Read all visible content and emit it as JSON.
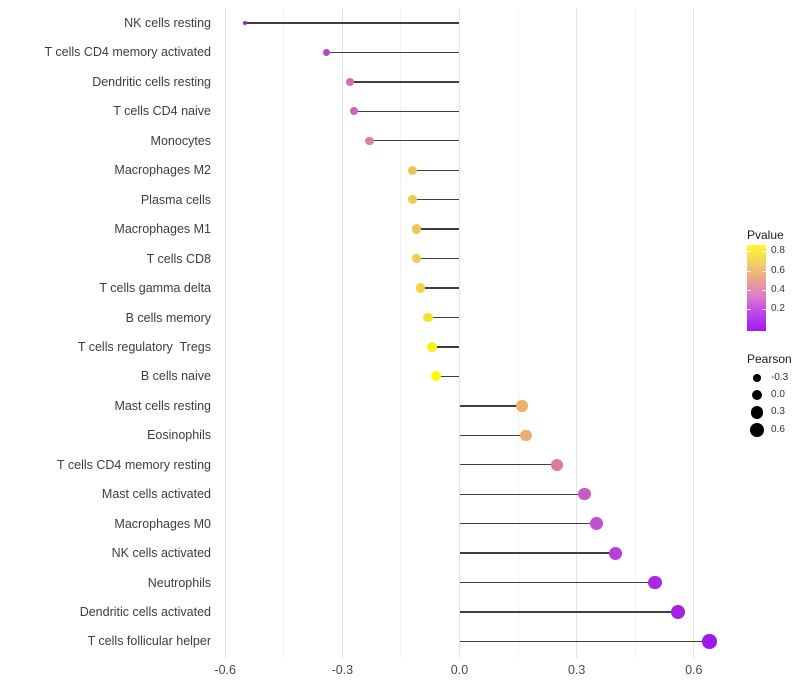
{
  "chart_data": {
    "type": "lollipop",
    "title": "",
    "xlabel": "",
    "ylabel": "",
    "x_tick_values": [
      -0.6,
      -0.3,
      0.0,
      0.3,
      0.6
    ],
    "x_tick_labels": [
      "-0.6",
      "-0.3",
      "0.0",
      "0.3",
      "0.6"
    ],
    "x_minor_gridlines": [
      -0.45,
      -0.15,
      0.15,
      0.45
    ],
    "xlim": [
      -0.63,
      0.76
    ],
    "grid": "light gray major and minor vertical gridlines on white background",
    "legend_position": "right",
    "stem_color": "#3f3f3f",
    "points": [
      {
        "label": "NK cells resting",
        "pearson": -0.55,
        "pvalue_color": "#8f2bd6"
      },
      {
        "label": "T cells CD4 memory activated",
        "pearson": -0.34,
        "pvalue_color": "#b04cc3"
      },
      {
        "label": "Dendritic cells resting",
        "pearson": -0.28,
        "pvalue_color": "#cc6dbe"
      },
      {
        "label": "T cells CD4 naive",
        "pearson": -0.27,
        "pvalue_color": "#c965bc"
      },
      {
        "label": "Monocytes",
        "pearson": -0.23,
        "pvalue_color": "#de8292"
      },
      {
        "label": "Macrophages M2",
        "pearson": -0.12,
        "pvalue_color": "#edc45b"
      },
      {
        "label": "Plasma cells",
        "pearson": -0.12,
        "pvalue_color": "#efc94f"
      },
      {
        "label": "Macrophages M1",
        "pearson": -0.11,
        "pvalue_color": "#eec653"
      },
      {
        "label": "T cells CD8",
        "pearson": -0.11,
        "pvalue_color": "#f0cb4e"
      },
      {
        "label": "T cells gamma delta",
        "pearson": -0.1,
        "pvalue_color": "#f2d53c"
      },
      {
        "label": "B cells memory",
        "pearson": -0.08,
        "pvalue_color": "#f4e32c"
      },
      {
        "label": "T cells regulatory  Tregs",
        "pearson": -0.07,
        "pvalue_color": "#f8f112"
      },
      {
        "label": "B cells naive",
        "pearson": -0.06,
        "pvalue_color": "#fdfb06"
      },
      {
        "label": "Mast cells resting",
        "pearson": 0.16,
        "pvalue_color": "#edb266"
      },
      {
        "label": "Eosinophils",
        "pearson": 0.17,
        "pvalue_color": "#edad74"
      },
      {
        "label": "T cells CD4 memory resting",
        "pearson": 0.25,
        "pvalue_color": "#d97ba2"
      },
      {
        "label": "Mast cells activated",
        "pearson": 0.32,
        "pvalue_color": "#c75bc5"
      },
      {
        "label": "Macrophages M0",
        "pearson": 0.35,
        "pvalue_color": "#c04fd2"
      },
      {
        "label": "NK cells activated",
        "pearson": 0.4,
        "pvalue_color": "#b83dda"
      },
      {
        "label": "Neutrophils",
        "pearson": 0.5,
        "pvalue_color": "#a928e2"
      },
      {
        "label": "Dendritic cells activated",
        "pearson": 0.56,
        "pvalue_color": "#a521e6"
      },
      {
        "label": "T cells follicular helper",
        "pearson": 0.64,
        "pvalue_color": "#a019ea"
      }
    ],
    "legend_pvalue": {
      "title": "Pvalue",
      "tick_labels": [
        "0.8",
        "0.6",
        "0.4",
        "0.2"
      ],
      "gradient_top_to_bottom": [
        "#fcfa2d",
        "#f4d165",
        "#eca48f",
        "#de7bc8",
        "#bc43ee",
        "#a418f2"
      ]
    },
    "legend_pearson": {
      "title": "Pearson",
      "item_values": [
        -0.3,
        0.0,
        0.3,
        0.6
      ],
      "item_labels": [
        "-0.3",
        "0.0",
        "0.3",
        "0.6"
      ],
      "dot_color": "#000000"
    }
  }
}
